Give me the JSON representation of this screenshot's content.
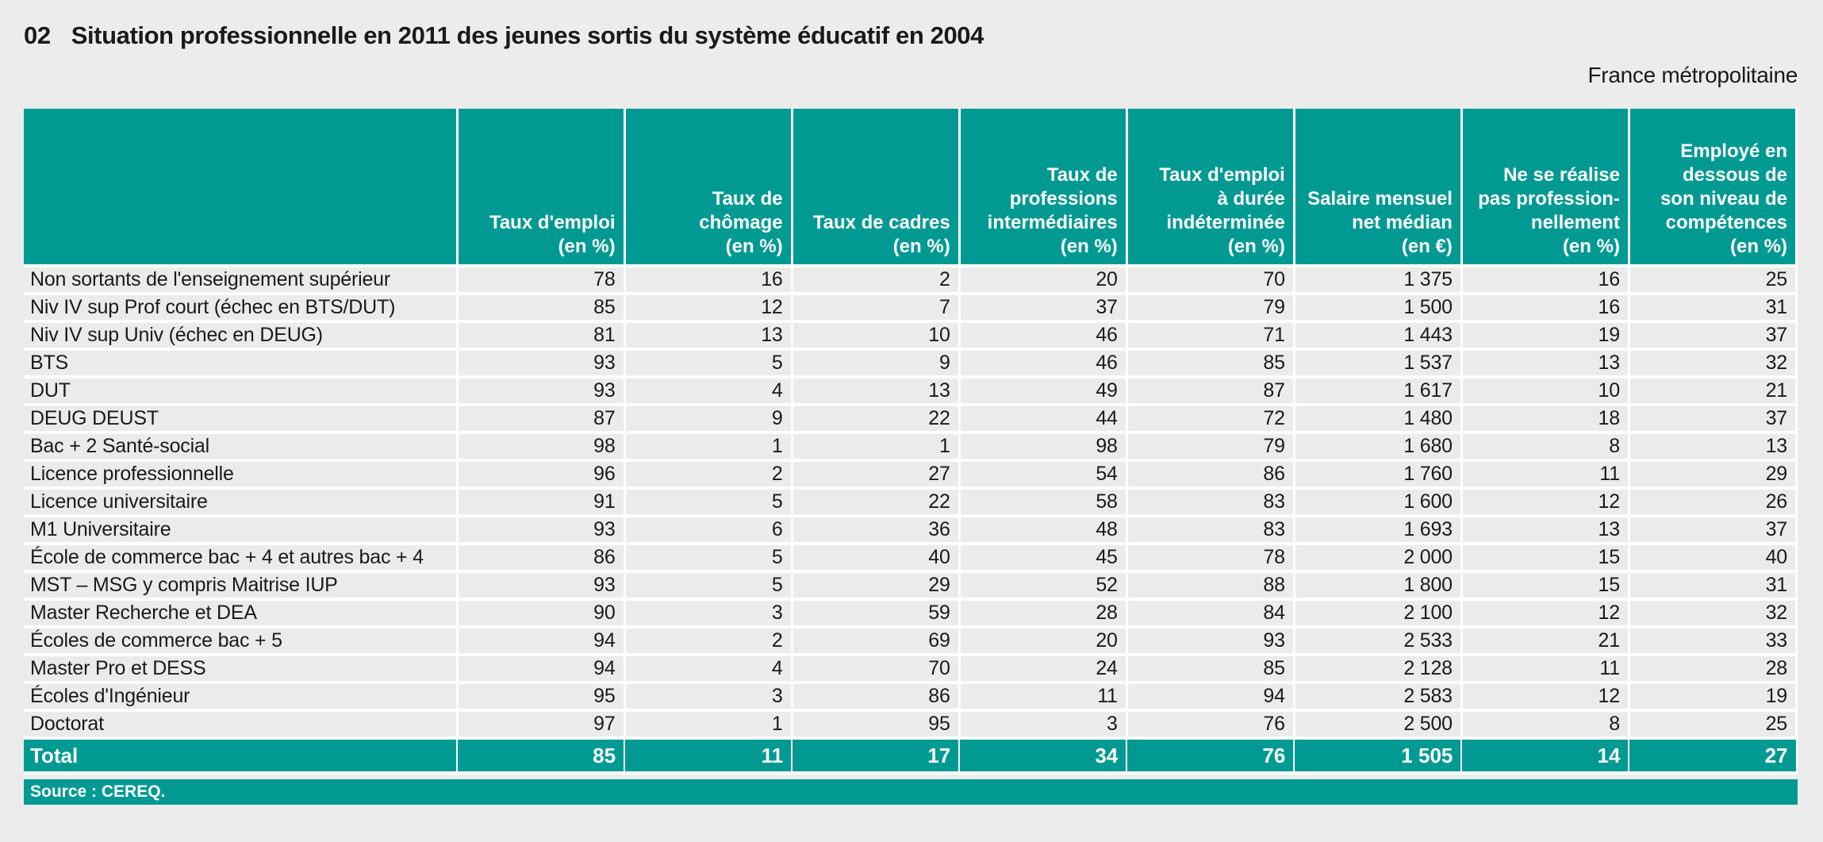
{
  "header": {
    "number": "02",
    "title": "Situation professionnelle en 2011 des jeunes sortis du système éducatif en 2004",
    "region": "France métropolitaine"
  },
  "colors": {
    "accent_teal": "#009A93",
    "separator_white": "#FFFFFF",
    "row_gray": "#EBEBEB",
    "page_gray": "#ECECEC",
    "header_text": "#FFFFFF",
    "body_text": "#1A1A1A"
  },
  "table": {
    "columns": [
      {
        "label": "Taux d'emploi\n(en %)"
      },
      {
        "label": "Taux de\nchômage\n(en %)"
      },
      {
        "label": "Taux de cadres\n(en %)"
      },
      {
        "label": "Taux de\nprofessions\nintermédiaires\n(en %)"
      },
      {
        "label": "Taux d'emploi\nà durée\nindéterminée\n(en %)"
      },
      {
        "label": "Salaire mensuel\nnet médian\n(en €)"
      },
      {
        "label": "Ne se réalise\npas profession-\nnellement\n(en %)"
      },
      {
        "label": "Employé en\ndessous de\nson niveau de\ncompétences\n(en %)"
      }
    ],
    "rows": [
      {
        "label": "Non sortants de l'enseignement supérieur",
        "values": [
          "78",
          "16",
          "2",
          "20",
          "70",
          "1 375",
          "16",
          "25"
        ]
      },
      {
        "label": "Niv IV sup Prof court (échec en BTS/DUT)",
        "values": [
          "85",
          "12",
          "7",
          "37",
          "79",
          "1 500",
          "16",
          "31"
        ]
      },
      {
        "label": "Niv IV sup Univ (échec en DEUG)",
        "values": [
          "81",
          "13",
          "10",
          "46",
          "71",
          "1 443",
          "19",
          "37"
        ]
      },
      {
        "label": "BTS",
        "values": [
          "93",
          "5",
          "9",
          "46",
          "85",
          "1 537",
          "13",
          "32"
        ]
      },
      {
        "label": "DUT",
        "values": [
          "93",
          "4",
          "13",
          "49",
          "87",
          "1 617",
          "10",
          "21"
        ]
      },
      {
        "label": "DEUG DEUST",
        "values": [
          "87",
          "9",
          "22",
          "44",
          "72",
          "1 480",
          "18",
          "37"
        ]
      },
      {
        "label": "Bac + 2 Santé-social",
        "values": [
          "98",
          "1",
          "1",
          "98",
          "79",
          "1 680",
          "8",
          "13"
        ]
      },
      {
        "label": "Licence professionnelle",
        "values": [
          "96",
          "2",
          "27",
          "54",
          "86",
          "1 760",
          "11",
          "29"
        ]
      },
      {
        "label": "Licence universitaire",
        "values": [
          "91",
          "5",
          "22",
          "58",
          "83",
          "1 600",
          "12",
          "26"
        ]
      },
      {
        "label": "M1 Universitaire",
        "values": [
          "93",
          "6",
          "36",
          "48",
          "83",
          "1 693",
          "13",
          "37"
        ]
      },
      {
        "label": "École de commerce bac + 4 et autres bac + 4",
        "values": [
          "86",
          "5",
          "40",
          "45",
          "78",
          "2 000",
          "15",
          "40"
        ]
      },
      {
        "label": "MST – MSG y compris Maitrise IUP",
        "values": [
          "93",
          "5",
          "29",
          "52",
          "88",
          "1 800",
          "15",
          "31"
        ]
      },
      {
        "label": "Master Recherche et DEA",
        "values": [
          "90",
          "3",
          "59",
          "28",
          "84",
          "2 100",
          "12",
          "32"
        ]
      },
      {
        "label": "Écoles de commerce bac + 5",
        "values": [
          "94",
          "2",
          "69",
          "20",
          "93",
          "2 533",
          "21",
          "33"
        ]
      },
      {
        "label": "Master Pro et DESS",
        "values": [
          "94",
          "4",
          "70",
          "24",
          "85",
          "2 128",
          "11",
          "28"
        ]
      },
      {
        "label": "Écoles d'Ingénieur",
        "values": [
          "95",
          "3",
          "86",
          "11",
          "94",
          "2 583",
          "12",
          "19"
        ]
      },
      {
        "label": "Doctorat",
        "values": [
          "97",
          "1",
          "95",
          "3",
          "76",
          "2 500",
          "8",
          "25"
        ]
      }
    ],
    "total": {
      "label": "Total",
      "values": [
        "85",
        "11",
        "17",
        "34",
        "76",
        "1 505",
        "14",
        "27"
      ]
    },
    "source": "Source : CEREQ."
  }
}
